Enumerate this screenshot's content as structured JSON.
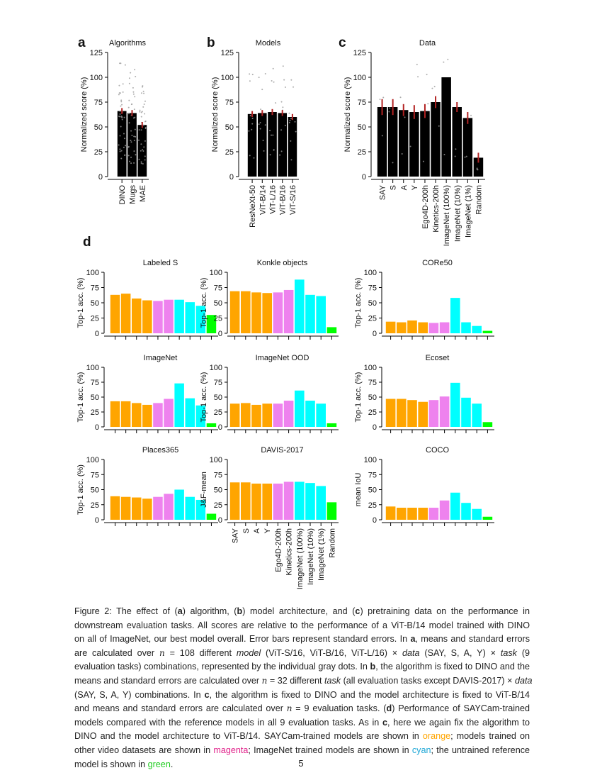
{
  "colors": {
    "orange": "#FFA500",
    "magenta": "#EE82EE",
    "cyan": "#00FFFF",
    "green": "#00FF00",
    "bar": "#000000",
    "error": "#B22222",
    "dots": "#9a9a9a"
  },
  "chart_data": [
    {
      "panel": "a",
      "type": "bar",
      "title": "Algorithms",
      "ylabel": "Normalized score (%)",
      "ylim": [
        0,
        125
      ],
      "yticks": [
        0,
        25,
        50,
        75,
        100,
        125
      ],
      "categories": [
        "DINO",
        "Mugs",
        "MAE"
      ],
      "values": [
        66,
        64,
        52
      ],
      "errors": [
        3,
        3,
        3
      ]
    },
    {
      "panel": "b",
      "type": "bar",
      "title": "Models",
      "ylabel": "Normalized score (%)",
      "ylim": [
        0,
        125
      ],
      "yticks": [
        0,
        25,
        50,
        75,
        100,
        125
      ],
      "categories": [
        "ResNeXt-50",
        "ViT-B/14",
        "ViT-L/16",
        "ViT-B/16",
        "ViT-S/16"
      ],
      "values": [
        63,
        64,
        65,
        64,
        60
      ],
      "errors": [
        3,
        3,
        3,
        3,
        3
      ]
    },
    {
      "panel": "c",
      "type": "bar",
      "title": "Data",
      "ylabel": "Normalized score (%)",
      "ylim": [
        0,
        125
      ],
      "yticks": [
        0,
        25,
        50,
        75,
        100,
        125
      ],
      "categories": [
        "SAY",
        "S",
        "A",
        "Y",
        "Ego4D-200h",
        "Kinetics-200h",
        "ImageNet (100%)",
        "ImageNet (10%)",
        "ImageNet (1%)",
        "Random"
      ],
      "values": [
        70,
        70,
        67,
        65,
        66,
        75,
        100,
        70,
        59,
        19
      ],
      "errors": [
        8,
        8,
        6,
        7,
        7,
        6,
        0,
        5,
        6,
        5
      ]
    },
    {
      "panel": "d",
      "type": "bar",
      "categories": [
        "SAY",
        "S",
        "A",
        "Y",
        "Ego4D-200h",
        "Kinetics-200h",
        "ImageNet (100%)",
        "ImageNet (10%)",
        "ImageNet (1%)",
        "Random"
      ],
      "bar_groups": [
        "orange",
        "orange",
        "orange",
        "orange",
        "magenta",
        "magenta",
        "cyan",
        "cyan",
        "cyan",
        "green"
      ],
      "ylim": [
        0,
        100
      ],
      "yticks": [
        0,
        25,
        50,
        75,
        100
      ],
      "subplots": [
        {
          "title": "Labeled S",
          "ylabel": "Top-1 acc. (%)",
          "values": [
            63,
            65,
            57,
            54,
            53,
            55,
            55,
            51,
            45,
            30
          ]
        },
        {
          "title": "Konkle objects",
          "ylabel": "Top-1 acc. (%)",
          "values": [
            69,
            69,
            67,
            66,
            67,
            71,
            88,
            63,
            61,
            10
          ]
        },
        {
          "title": "CORe50",
          "ylabel": "Top-1 acc. (%)",
          "values": [
            19,
            18,
            21,
            18,
            17,
            18,
            58,
            18,
            12,
            4
          ]
        },
        {
          "title": "ImageNet",
          "ylabel": "Top-1 acc. (%)",
          "values": [
            43,
            43,
            40,
            37,
            40,
            47,
            73,
            48,
            36,
            6
          ]
        },
        {
          "title": "ImageNet OOD",
          "ylabel": "Top-1 acc. (%)",
          "values": [
            39,
            40,
            37,
            39,
            39,
            44,
            61,
            44,
            39,
            6
          ]
        },
        {
          "title": "Ecoset",
          "ylabel": "Top-1 acc. (%)",
          "values": [
            47,
            47,
            45,
            42,
            45,
            51,
            74,
            49,
            39,
            8
          ]
        },
        {
          "title": "Places365",
          "ylabel": "Top-1 acc. (%)",
          "values": [
            39,
            38,
            37,
            35,
            38,
            43,
            50,
            38,
            33,
            10
          ]
        },
        {
          "title": "DAVIS-2017",
          "ylabel": "J&F-mean",
          "values": [
            62,
            62,
            60,
            60,
            60,
            63,
            63,
            61,
            56,
            29
          ]
        },
        {
          "title": "COCO",
          "ylabel": "mean IoU",
          "values": [
            22,
            20,
            20,
            20,
            20,
            32,
            45,
            28,
            18,
            5
          ]
        }
      ]
    }
  ],
  "caption": [
    [
      [
        "Figure 2:  The effect of (",
        ""
      ],
      [
        "a",
        "b"
      ],
      [
        ") algorithm, (",
        ""
      ],
      [
        "b",
        "b"
      ],
      [
        ") model architecture, and (",
        ""
      ],
      [
        "c",
        "b"
      ],
      [
        ") pretraining data on the performance in",
        ""
      ]
    ],
    [
      [
        "downstream evaluation tasks.  All scores are relative to the performance of a ViT-B/14 model trained with DINO",
        ""
      ]
    ],
    [
      [
        "on all of ImageNet, our best model overall.  Error bars represent standard errors.  In ",
        ""
      ],
      [
        "a",
        "b"
      ],
      [
        ", means and standard errors",
        ""
      ]
    ],
    [
      [
        "are calculated over ",
        ""
      ],
      [
        "n",
        "m"
      ],
      [
        " = 108 different ",
        ""
      ],
      [
        "model",
        "i"
      ],
      [
        " (ViT-S/16, ViT-B/16, ViT-L/16) × ",
        ""
      ],
      [
        "data",
        "i"
      ],
      [
        " (SAY, S, A, Y) × ",
        ""
      ],
      [
        "task",
        "i"
      ],
      [
        " (9",
        ""
      ]
    ],
    [
      [
        "evaluation tasks) combinations, represented by the individual gray dots. In ",
        ""
      ],
      [
        "b",
        "b"
      ],
      [
        ", the algorithm is fixed to DINO and the",
        ""
      ]
    ],
    [
      [
        "means and standard errors are calculated over ",
        ""
      ],
      [
        "n",
        "m"
      ],
      [
        " = 32 different ",
        ""
      ],
      [
        "task",
        "i"
      ],
      [
        " (all evaluation tasks except DAVIS-2017) × ",
        ""
      ],
      [
        "data",
        "i"
      ]
    ],
    [
      [
        "(SAY, S, A, Y) combinations.  In ",
        ""
      ],
      [
        "c",
        "b"
      ],
      [
        ", the algorithm is fixed to DINO and the model architecture is fixed to ViT-B/14",
        ""
      ]
    ],
    [
      [
        "and means and standard errors are calculated over ",
        ""
      ],
      [
        "n",
        "m"
      ],
      [
        " = 9 evaluation tasks.  (",
        ""
      ],
      [
        "d",
        "b"
      ],
      [
        ") Performance of SAYCam-trained",
        ""
      ]
    ],
    [
      [
        "models compared with the reference models in all 9 evaluation tasks.  As in ",
        ""
      ],
      [
        "c",
        "b"
      ],
      [
        ", here we again fix the algorithm to",
        ""
      ]
    ],
    [
      [
        "DINO and the model architecture to ViT-B/14.  SAYCam-trained models are shown in ",
        ""
      ],
      [
        "orange",
        "orange"
      ],
      [
        "; models trained on",
        ""
      ]
    ],
    [
      [
        "other video datasets are shown in ",
        ""
      ],
      [
        "magenta",
        "magenta"
      ],
      [
        "; ImageNet trained models are shown in ",
        ""
      ],
      [
        "cyan",
        "cyan"
      ],
      [
        "; the untrained reference",
        ""
      ]
    ],
    [
      [
        "model is shown in ",
        ""
      ],
      [
        "green",
        "green"
      ],
      [
        ".",
        ""
      ]
    ]
  ],
  "page_number": "5"
}
